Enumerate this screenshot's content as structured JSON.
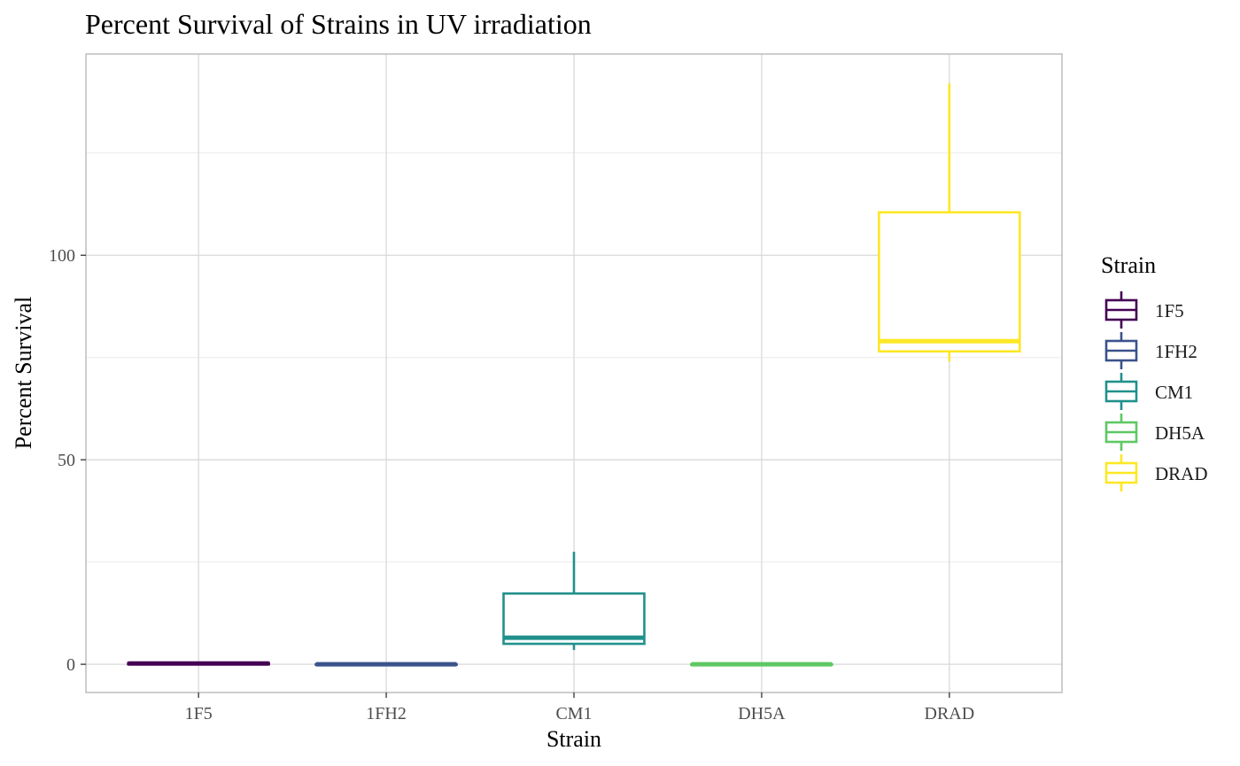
{
  "chart_data": {
    "type": "boxplot",
    "title": "Percent Survival of Strains in UV irradiation",
    "xlabel": "Strain",
    "ylabel": "Percent Survival",
    "categories": [
      "1F5",
      "1FH2",
      "CM1",
      "DH5A",
      "DRAD"
    ],
    "yticks": [
      0,
      50,
      100
    ],
    "ylim": [
      -6.9,
      149.2
    ],
    "grid": true,
    "legend": {
      "title": "Strain",
      "position": "right",
      "entries": [
        "1F5",
        "1FH2",
        "CM1",
        "DH5A",
        "DRAD"
      ]
    },
    "series": [
      {
        "category": "1F5",
        "color": "#440154",
        "min": 0,
        "q1": 0,
        "median": 0.2,
        "q3": 0.3,
        "max": 0.3
      },
      {
        "category": "1FH2",
        "color": "#3B528B",
        "min": 0,
        "q1": 0,
        "median": 0,
        "q3": 0,
        "max": 0
      },
      {
        "category": "CM1",
        "color": "#21908C",
        "min": 3.5,
        "q1": 5,
        "median": 6.5,
        "q3": 17.3,
        "max": 27.5
      },
      {
        "category": "DH5A",
        "color": "#5DC863",
        "min": 0,
        "q1": 0,
        "median": 0,
        "q3": 0,
        "max": 0
      },
      {
        "category": "DRAD",
        "color": "#FDE725",
        "min": 74,
        "q1": 76.5,
        "median": 79,
        "q3": 110.5,
        "max": 142
      }
    ]
  }
}
